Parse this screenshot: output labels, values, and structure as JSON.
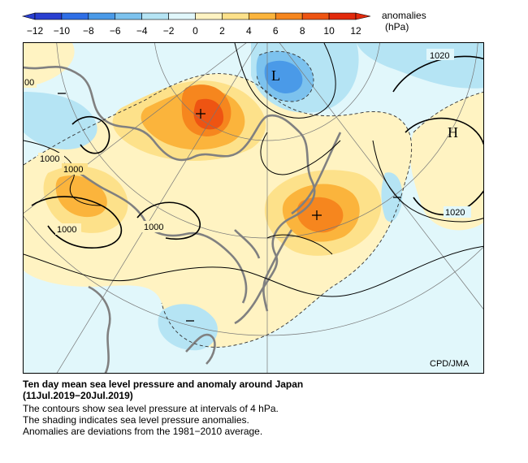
{
  "legend": {
    "title": "anomalies",
    "unit": "(hPa)",
    "ticks": [
      "−12",
      "−10",
      "−8",
      "−6",
      "−4",
      "−2",
      "0",
      "2",
      "4",
      "6",
      "8",
      "10",
      "12"
    ],
    "colors": [
      "#2a3fd1",
      "#2f6fe6",
      "#4a9ae8",
      "#7cc2ee",
      "#b5e4f4",
      "#e1f7fb",
      "#fff3c2",
      "#fde18a",
      "#fbb43c",
      "#f6861e",
      "#ee5412",
      "#e22a0c"
    ]
  },
  "map": {
    "credit": "CPD/JMA",
    "contour_labels": [
      "1020",
      "1000",
      "1000",
      "1000",
      "1000",
      "1020",
      "00"
    ],
    "centers": {
      "high": "H",
      "low": "L"
    }
  },
  "caption": {
    "title": "Ten day mean sea level pressure and anomaly around Japan",
    "period": "(11Jul.2019−20Jul.2019)",
    "lines": [
      "The contours show sea level pressure at intervals of 4 hPa.",
      "The shading indicates sea level pressure anomalies.",
      "Anomalies are deviations from the 1981−2010 average."
    ]
  }
}
